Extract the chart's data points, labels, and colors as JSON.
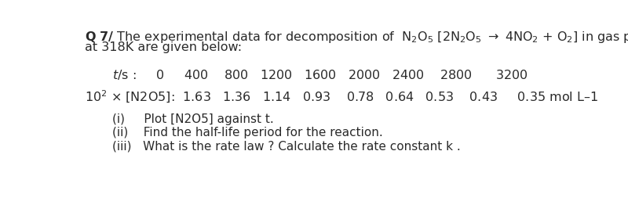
{
  "bg_color": "#ffffff",
  "text_color": "#2a2a2a",
  "font_size": 11.5,
  "font_size_small": 11.0,
  "line1_prefix": "Q 7/ The experimental data for decomposition of  N",
  "line1_suffix": "O",
  "line1_bracket": " [2N",
  "line1_arrow": " → 4NO",
  "line1_o2": " + O",
  "line1_end": "] in gas phase",
  "line2": "at 318K are given below:",
  "ts_label": "t/s :",
  "ts_values": "      0     400    800   1200   1600   2000   2400    2800     3200",
  "n2o5_label": "10² × [N2O5]:",
  "n2o5_values": " 1.63   1.36   1.14   0.93    0.78   0.64   0.53    0.43     0.35 mol L–1",
  "item_i_num": "(i)",
  "item_i_text": "   Plot [N2O5] against t.",
  "item_ii_num": "(ii)",
  "item_ii_text": "  Find the half-life period for the reaction.",
  "item_iii_num": "(iii)",
  "item_iii_text": "  What is the rate law ? Calculate the rate constant k ."
}
